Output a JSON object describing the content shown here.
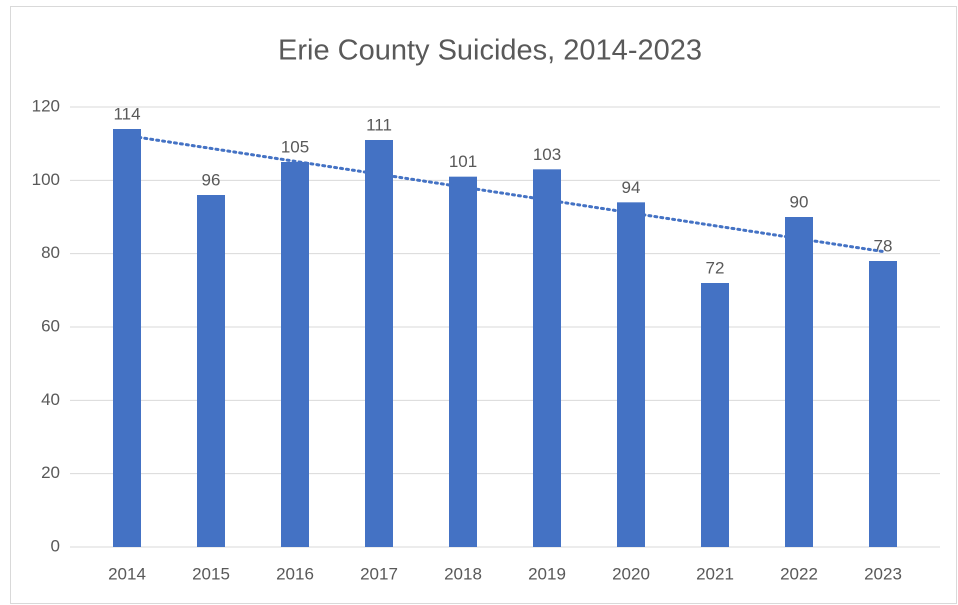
{
  "chart_data": {
    "type": "bar",
    "title": "Erie County Suicides, 2014-2023",
    "categories": [
      "2014",
      "2015",
      "2016",
      "2017",
      "2018",
      "2019",
      "2020",
      "2021",
      "2022",
      "2023"
    ],
    "values": [
      114,
      96,
      105,
      111,
      101,
      103,
      94,
      72,
      90,
      78
    ],
    "color": "#4472c4",
    "ylim": [
      0,
      120
    ],
    "yticks": [
      0,
      20,
      40,
      60,
      80,
      100,
      120
    ],
    "grid": true,
    "data_labels": true,
    "trendline": "linear"
  }
}
